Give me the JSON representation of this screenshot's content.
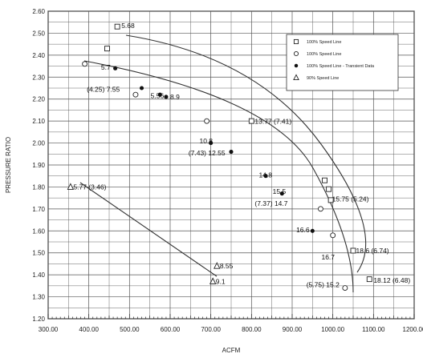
{
  "chart_data": {
    "type": "scatter",
    "xlabel": "ACFM",
    "ylabel": "PRESSURE RATIO",
    "xlim": [
      300,
      1200
    ],
    "ylim": [
      1.2,
      2.6
    ],
    "x_ticks": [
      "300.00",
      "400.00",
      "500.00",
      "600.00",
      "700.00",
      "800.00",
      "900.00",
      "1000.00",
      "1100.00",
      "1200.00"
    ],
    "y_ticks": [
      "1.20",
      "1.30",
      "1.40",
      "1.50",
      "1.60",
      "1.70",
      "1.80",
      "1.90",
      "2.00",
      "2.10",
      "2.20",
      "2.30",
      "2.40",
      "2.50",
      "2.60"
    ],
    "grid": true,
    "legend_position": "top-right",
    "series": [
      {
        "name": "100% Speed Line",
        "marker": "square",
        "points": [
          {
            "x": 445,
            "y": 2.43
          },
          {
            "x": 470,
            "y": 2.53
          },
          {
            "x": 800,
            "y": 2.1
          },
          {
            "x": 980,
            "y": 1.83
          },
          {
            "x": 990,
            "y": 1.79
          },
          {
            "x": 995,
            "y": 1.74
          },
          {
            "x": 1050,
            "y": 1.51
          },
          {
            "x": 1090,
            "y": 1.38
          }
        ]
      },
      {
        "name": "100% Speed Line",
        "marker": "circle",
        "points": [
          {
            "x": 390,
            "y": 2.36
          },
          {
            "x": 515,
            "y": 2.22
          },
          {
            "x": 690,
            "y": 2.1
          },
          {
            "x": 970,
            "y": 1.7
          },
          {
            "x": 1000,
            "y": 1.58
          },
          {
            "x": 1030,
            "y": 1.34
          }
        ]
      },
      {
        "name": "100% Speed Line - Transient Data",
        "marker": "filled-circle",
        "points": [
          {
            "x": 465,
            "y": 2.34
          },
          {
            "x": 530,
            "y": 2.25
          },
          {
            "x": 575,
            "y": 2.22
          },
          {
            "x": 590,
            "y": 2.21
          },
          {
            "x": 700,
            "y": 2.0
          },
          {
            "x": 750,
            "y": 1.96
          },
          {
            "x": 835,
            "y": 1.85
          },
          {
            "x": 875,
            "y": 1.77
          },
          {
            "x": 950,
            "y": 1.6
          }
        ]
      },
      {
        "name": "90% Speed Line",
        "marker": "triangle",
        "points": [
          {
            "x": 355,
            "y": 1.8
          },
          {
            "x": 715,
            "y": 1.44
          },
          {
            "x": 705,
            "y": 1.37
          }
        ]
      }
    ],
    "annotations": [
      "5.68",
      "5.7",
      "(4.25) 7.55",
      "5.56",
      "8.9",
      "13.77 (7.41)",
      "10.8",
      "(7.43) 12.55",
      "14.8",
      "15.5",
      "(7.37) 14.7",
      "16.6",
      "15.75 (5.24)",
      "18.6 (6.74)",
      "16.7",
      "(5.75) 15.2",
      "18.12 (6.48)",
      "5.77 (3.46)",
      "8.55",
      "9.1"
    ]
  }
}
